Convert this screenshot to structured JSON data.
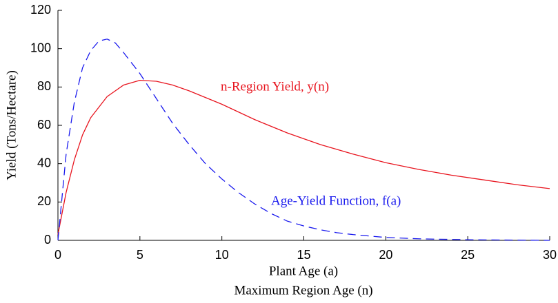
{
  "chart_data": {
    "type": "line",
    "xlabel": "Plant Age (a)",
    "xlabel2": "Maximum Region Age (n)",
    "ylabel": "Yield (Tons/Hectare)",
    "xlim": [
      0,
      30
    ],
    "xticks": [
      0,
      5,
      10,
      15,
      20,
      25,
      30
    ],
    "ylim": [
      0,
      120
    ],
    "yticks": [
      0,
      20,
      40,
      60,
      80,
      100,
      120
    ],
    "grid": false,
    "annotations": [
      "n-Region Yield, y(n)",
      "Age-Yield Function, f(a)"
    ],
    "series": [
      {
        "color": "#e8141e",
        "dash": false,
        "x": [
          0,
          0.5,
          1,
          1.5,
          2,
          3,
          4,
          5,
          6,
          7,
          8,
          10,
          12,
          14,
          16,
          18,
          20,
          22,
          24,
          26,
          28,
          30
        ],
        "values": [
          3,
          25,
          42,
          55,
          64,
          75,
          81,
          83.5,
          83,
          81,
          78,
          71,
          63,
          56,
          50,
          45,
          40.5,
          37,
          34,
          31.5,
          29,
          27
        ]
      },
      {
        "color": "#1a1aee",
        "dash": true,
        "x": [
          0,
          0.5,
          1,
          1.5,
          2,
          2.5,
          3,
          3.5,
          4,
          5,
          6,
          7,
          8,
          9,
          10,
          11,
          12,
          13,
          14,
          15,
          16,
          17,
          18,
          20,
          22,
          25,
          30
        ],
        "values": [
          0,
          45,
          72,
          90,
          99,
          104,
          105,
          103,
          98,
          87,
          74,
          61,
          50,
          40,
          32,
          25,
          19,
          14,
          10,
          7.5,
          5.5,
          4,
          3,
          1.5,
          0.8,
          0.3,
          0
        ]
      }
    ]
  }
}
